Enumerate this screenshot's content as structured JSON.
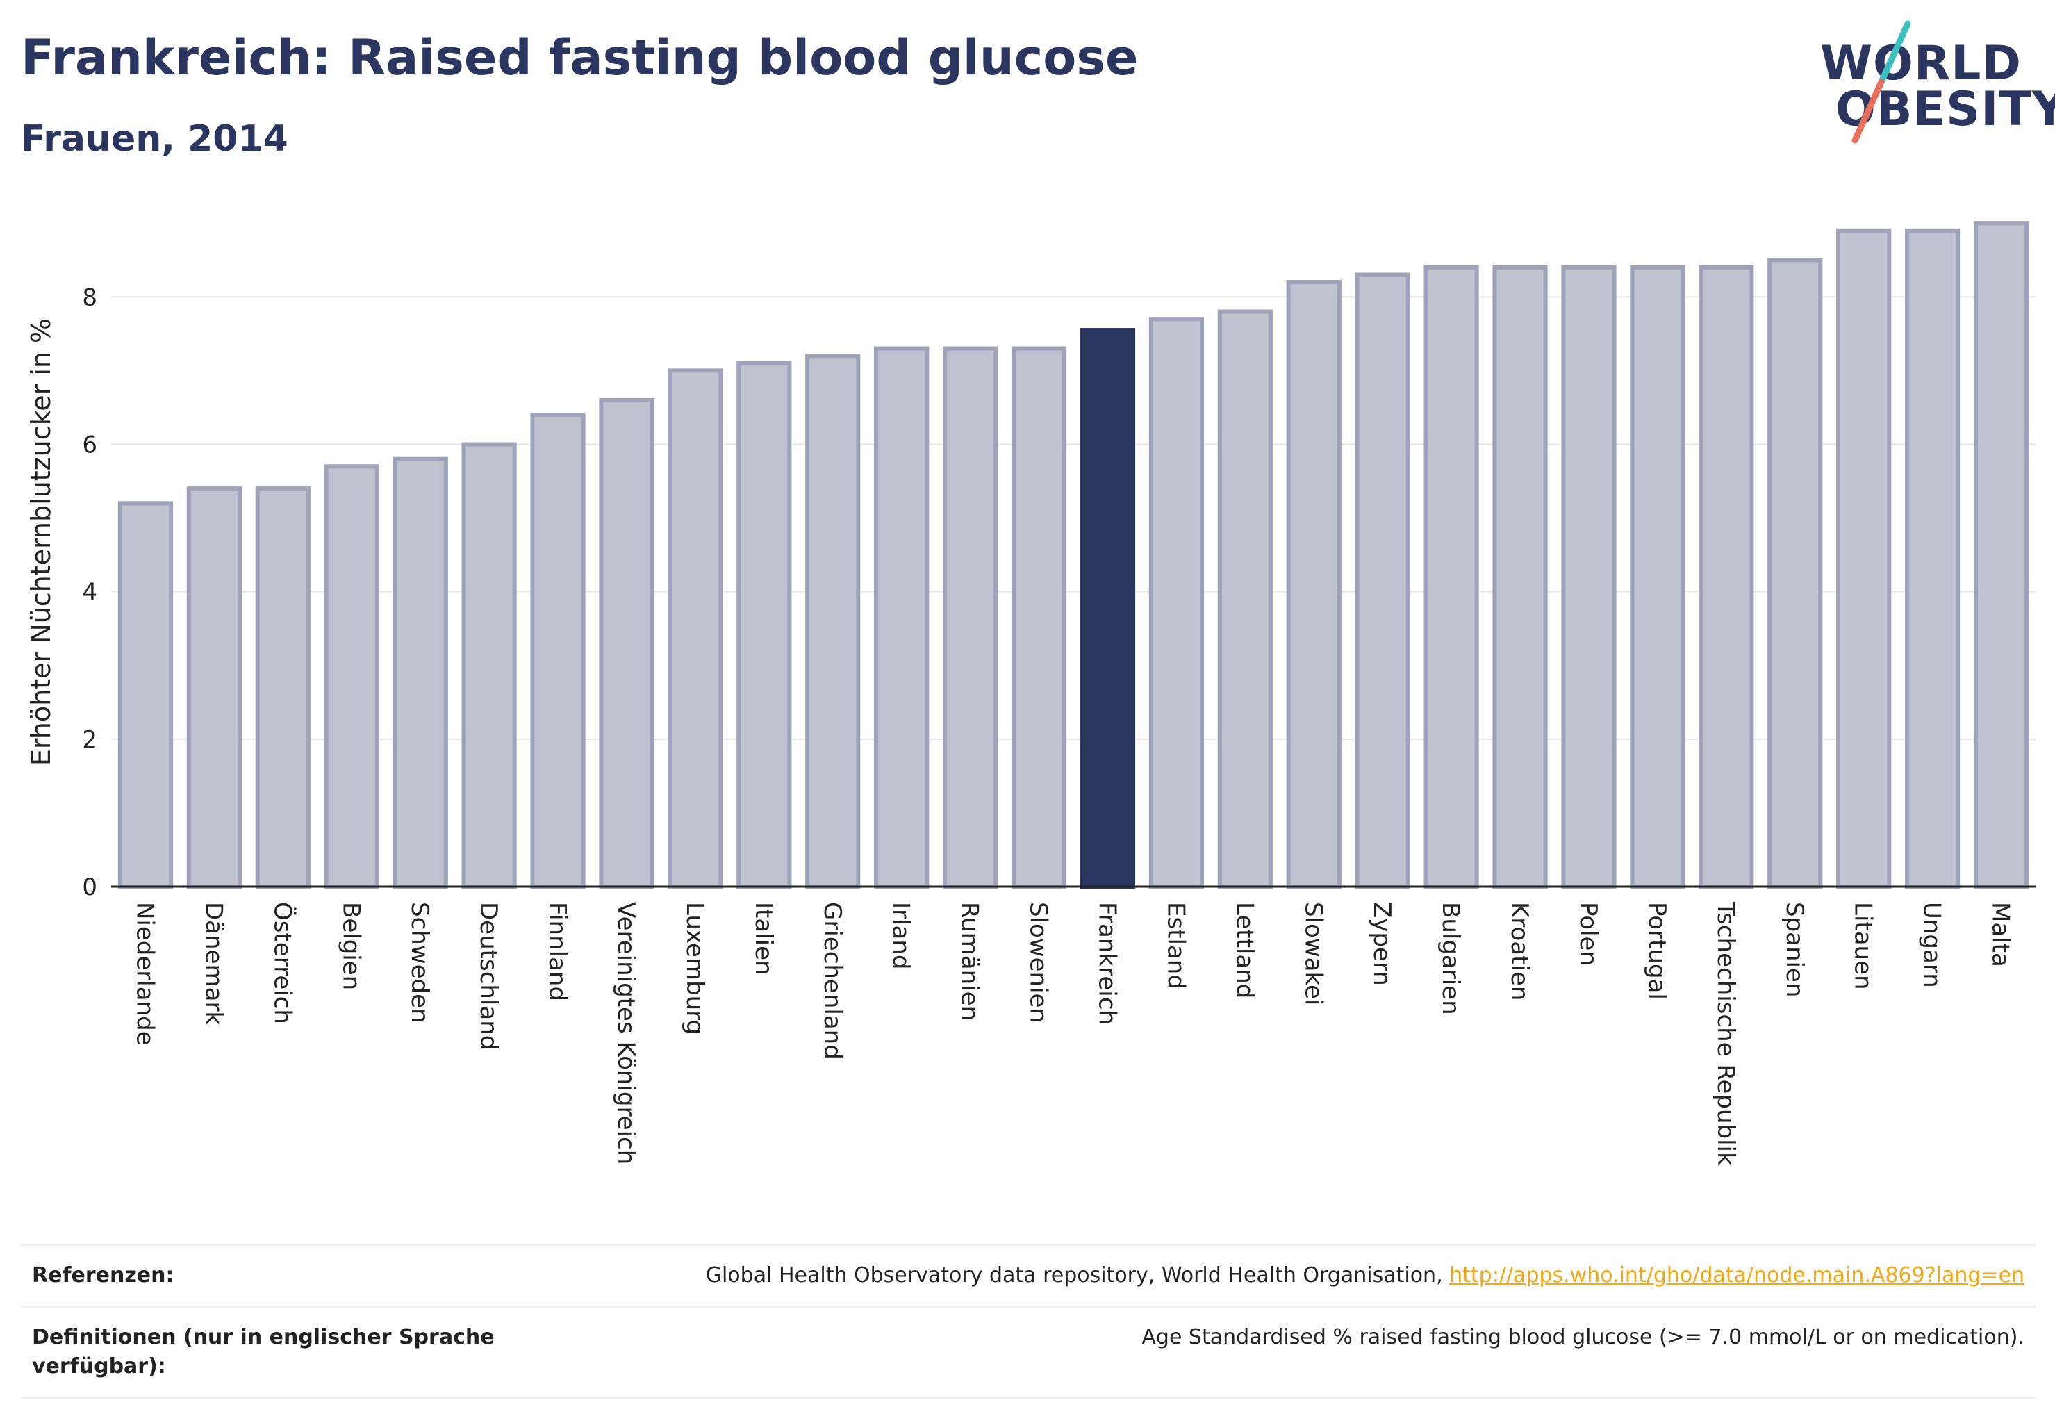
{
  "header": {
    "title": "Frankreich: Raised fasting blood glucose",
    "subtitle": "Frauen, 2014"
  },
  "logo": {
    "line1": "WORLD",
    "line2": "OBESITY",
    "slash_colors": [
      "#3bbfbf",
      "#e8705a"
    ]
  },
  "colors": {
    "bar": "#bfc2cf",
    "bar_stroke": "#9ea3ba",
    "highlight": "#2a3560",
    "grid": "#e4e6ec",
    "axis": "#222222",
    "title": "#2a3560",
    "link": "#f3a712"
  },
  "chart_data": {
    "type": "bar",
    "ylabel": "Erhöhter Nüchternblutzucker in %",
    "xlabel": "",
    "ylim": [
      0,
      9.2
    ],
    "yticks": [
      0,
      2,
      4,
      6,
      8
    ],
    "grid": true,
    "highlight": "Frankreich",
    "categories": [
      "Niederlande",
      "Dänemark",
      "Österreich",
      "Belgien",
      "Schweden",
      "Deutschland",
      "Finnland",
      "Vereinigtes Königreich",
      "Luxemburg",
      "Italien",
      "Griechenland",
      "Irland",
      "Rumänien",
      "Slowenien",
      "Frankreich",
      "Estland",
      "Lettland",
      "Slowakei",
      "Zypern",
      "Bulgarien",
      "Kroatien",
      "Polen",
      "Portugal",
      "Tschechische Republik",
      "Spanien",
      "Litauen",
      "Ungarn",
      "Malta"
    ],
    "values": [
      5.2,
      5.4,
      5.4,
      5.7,
      5.8,
      6.0,
      6.4,
      6.6,
      7.0,
      7.1,
      7.2,
      7.3,
      7.3,
      7.3,
      7.55,
      7.7,
      7.8,
      8.2,
      8.3,
      8.4,
      8.4,
      8.4,
      8.4,
      8.4,
      8.5,
      8.9,
      8.9,
      9.0
    ]
  },
  "references": {
    "ref_label": "Referenzen:",
    "ref_text": "Global Health Observatory data repository, World Health Organisation, ",
    "ref_link": "http://apps.who.int/gho/data/node.main.A869?lang=en",
    "def_label": "Definitionen (nur in englischer Sprache verfügbar):",
    "def_text": "Age Standardised % raised fasting blood glucose (>= 7.0 mmol/L or on medication)."
  }
}
